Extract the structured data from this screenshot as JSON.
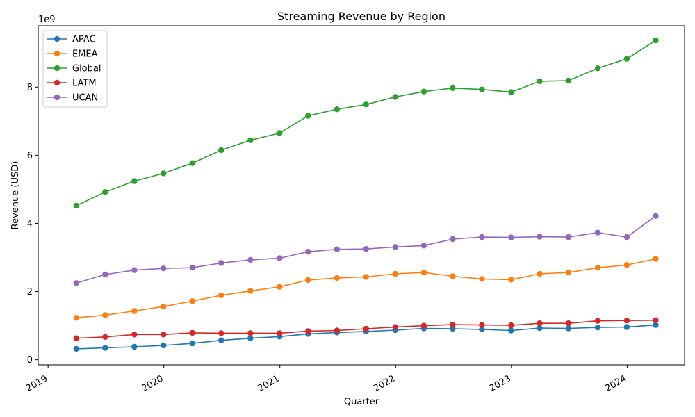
{
  "chart_data": {
    "type": "line",
    "title": "Streaming Revenue by Region",
    "xlabel": "Quarter",
    "ylabel": "Revenue (USD)",
    "y_offset_label": "1e9",
    "y_scale": 1000000000,
    "xlim": [
      "2018-12-01",
      "2024-06-30"
    ],
    "ylim": [
      -0.15,
      9.8
    ],
    "x_ticks": [
      "2019",
      "2020",
      "2021",
      "2022",
      "2023",
      "2024"
    ],
    "y_ticks": [
      "0",
      "2",
      "4",
      "6",
      "8"
    ],
    "grid": false,
    "legend_position": "top-left",
    "x": [
      "2019-03-31",
      "2019-06-30",
      "2019-09-30",
      "2019-12-31",
      "2020-03-31",
      "2020-06-30",
      "2020-09-30",
      "2020-12-31",
      "2021-03-31",
      "2021-06-30",
      "2021-09-30",
      "2021-12-31",
      "2022-03-31",
      "2022-06-30",
      "2022-09-30",
      "2022-12-31",
      "2023-03-31",
      "2023-06-30",
      "2023-09-30",
      "2023-12-31",
      "2024-03-31"
    ],
    "series": [
      {
        "name": "APAC",
        "color": "#1f77b4",
        "values": [
          0.32,
          0.35,
          0.38,
          0.42,
          0.48,
          0.57,
          0.63,
          0.68,
          0.76,
          0.8,
          0.83,
          0.87,
          0.92,
          0.91,
          0.89,
          0.86,
          0.93,
          0.92,
          0.95,
          0.96,
          1.02
        ]
      },
      {
        "name": "EMEA",
        "color": "#ff7f0e",
        "values": [
          1.23,
          1.31,
          1.43,
          1.56,
          1.72,
          1.89,
          2.02,
          2.14,
          2.34,
          2.4,
          2.43,
          2.52,
          2.56,
          2.45,
          2.37,
          2.35,
          2.52,
          2.56,
          2.7,
          2.78,
          2.96
        ]
      },
      {
        "name": "Global",
        "color": "#2ca02c",
        "values": [
          4.52,
          4.92,
          5.24,
          5.47,
          5.77,
          6.15,
          6.44,
          6.65,
          7.16,
          7.35,
          7.49,
          7.71,
          7.87,
          7.97,
          7.93,
          7.85,
          8.17,
          8.19,
          8.55,
          8.83,
          9.37
        ]
      },
      {
        "name": "LATM",
        "color": "#d62728",
        "values": [
          0.63,
          0.67,
          0.74,
          0.74,
          0.79,
          0.78,
          0.78,
          0.78,
          0.84,
          0.86,
          0.91,
          0.96,
          1.0,
          1.03,
          1.02,
          1.01,
          1.07,
          1.07,
          1.14,
          1.15,
          1.16
        ]
      },
      {
        "name": "UCAN",
        "color": "#9467bd",
        "values": [
          2.25,
          2.5,
          2.63,
          2.68,
          2.7,
          2.84,
          2.93,
          2.98,
          3.17,
          3.24,
          3.25,
          3.31,
          3.35,
          3.54,
          3.6,
          3.59,
          3.61,
          3.6,
          3.73,
          3.6,
          4.22
        ]
      }
    ]
  }
}
